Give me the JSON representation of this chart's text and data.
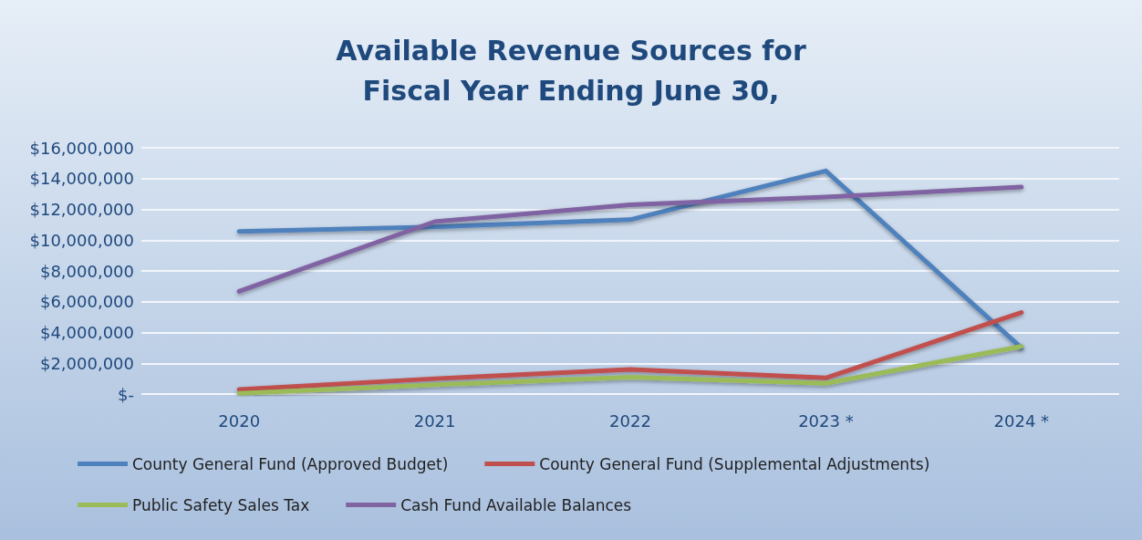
{
  "chart_data": {
    "type": "line",
    "title": "Available Revenue Sources for\nFiscal Year Ending June 30,",
    "categories": [
      "2020",
      "2021",
      "2022",
      "2023 *",
      "2024 *"
    ],
    "series": [
      {
        "name": "County General Fund (Approved Budget)",
        "color": "#4f81bd",
        "values": [
          10570000,
          10860000,
          11330000,
          14500000,
          3000000
        ]
      },
      {
        "name": "County General Fund (Supplemental Adjustments)",
        "color": "#c0504d",
        "values": [
          300000,
          1000000,
          1600000,
          1050000,
          5300000
        ]
      },
      {
        "name": "Public Safety Sales Tax",
        "color": "#9bbb59",
        "values": [
          50000,
          600000,
          1100000,
          700000,
          3100000
        ]
      },
      {
        "name": "Cash Fund Available Balances",
        "color": "#8064a2",
        "values": [
          6670000,
          11200000,
          12300000,
          12800000,
          13450000
        ]
      }
    ],
    "ylim": [
      0,
      16000000
    ],
    "yticks": [
      {
        "value": 0,
        "label": "$-"
      },
      {
        "value": 2000000,
        "label": "$2,000,000"
      },
      {
        "value": 4000000,
        "label": "$4,000,000"
      },
      {
        "value": 6000000,
        "label": "$6,000,000"
      },
      {
        "value": 8000000,
        "label": "$8,000,000"
      },
      {
        "value": 10000000,
        "label": "$10,000,000"
      },
      {
        "value": 12000000,
        "label": "$12,000,000"
      },
      {
        "value": 14000000,
        "label": "$14,000,000"
      },
      {
        "value": 16000000,
        "label": "$16,000,000"
      }
    ],
    "grid": "y",
    "legend": "bottom",
    "marker": "none",
    "line_style": "solid"
  }
}
